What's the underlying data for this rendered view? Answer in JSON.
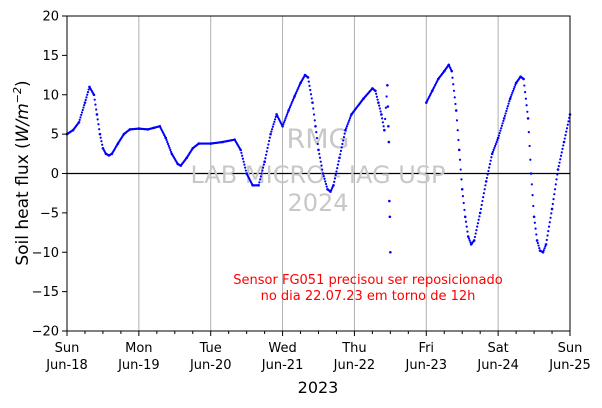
{
  "chart_data": {
    "type": "scatter",
    "ylabel_text": "Soil heat flux (",
    "ylabel_unit": "W/m",
    "ylabel_exp": "−2",
    "ylabel_close": ")",
    "xlabel": "2023",
    "ylim": [
      -20,
      20
    ],
    "xlim": [
      "2023-06-18",
      "2023-06-25"
    ],
    "yticks": [
      "−20",
      "−15",
      "−10",
      "−5",
      "0",
      "5",
      "10",
      "15",
      "20"
    ],
    "xticks": [
      {
        "day": "Sun",
        "date": "Jun-18"
      },
      {
        "day": "Mon",
        "date": "Jun-19"
      },
      {
        "day": "Tue",
        "date": "Jun-20"
      },
      {
        "day": "Wed",
        "date": "Jun-21"
      },
      {
        "day": "Thu",
        "date": "Jun-22"
      },
      {
        "day": "Fri",
        "date": "Jun-23"
      },
      {
        "day": "Sat",
        "date": "Jun-24"
      },
      {
        "day": "Sun",
        "date": "Jun-25"
      }
    ],
    "grid": "vertical",
    "zero_line": true,
    "series": [
      {
        "color": "#0000ff",
        "marker": "dot",
        "points": [
          [
            "2023-06-18 00:00",
            5.0
          ],
          [
            "2023-06-18 02:00",
            5.5
          ],
          [
            "2023-06-18 04:00",
            6.5
          ],
          [
            "2023-06-18 06:00",
            9.0
          ],
          [
            "2023-06-18 07:30",
            11.0
          ],
          [
            "2023-06-18 09:00",
            10.0
          ],
          [
            "2023-06-18 10:00",
            7.5
          ],
          [
            "2023-06-18 11:00",
            5.0
          ],
          [
            "2023-06-18 12:00",
            3.2
          ],
          [
            "2023-06-18 13:00",
            2.5
          ],
          [
            "2023-06-18 14:00",
            2.3
          ],
          [
            "2023-06-18 15:00",
            2.5
          ],
          [
            "2023-06-18 17:00",
            3.8
          ],
          [
            "2023-06-18 19:00",
            5.0
          ],
          [
            "2023-06-18 21:00",
            5.6
          ],
          [
            "2023-06-19 00:00",
            5.7
          ],
          [
            "2023-06-19 03:00",
            5.6
          ],
          [
            "2023-06-19 05:00",
            5.8
          ],
          [
            "2023-06-19 07:00",
            6.0
          ],
          [
            "2023-06-19 09:00",
            4.5
          ],
          [
            "2023-06-19 11:00",
            2.5
          ],
          [
            "2023-06-19 13:00",
            1.2
          ],
          [
            "2023-06-19 14:00",
            1.0
          ],
          [
            "2023-06-19 16:00",
            2.0
          ],
          [
            "2023-06-19 18:00",
            3.2
          ],
          [
            "2023-06-19 20:00",
            3.8
          ],
          [
            "2023-06-20 00:00",
            3.8
          ],
          [
            "2023-06-20 04:00",
            4.0
          ],
          [
            "2023-06-20 08:00",
            4.3
          ],
          [
            "2023-06-20 10:00",
            3.0
          ],
          [
            "2023-06-20 12:00",
            0.0
          ],
          [
            "2023-06-20 14:00",
            -1.5
          ],
          [
            "2023-06-20 16:00",
            -1.5
          ],
          [
            "2023-06-20 18:00",
            1.5
          ],
          [
            "2023-06-20 20:00",
            5.0
          ],
          [
            "2023-06-20 22:00",
            7.5
          ],
          [
            "2023-06-21 00:00",
            6.0
          ],
          [
            "2023-06-21 02:00",
            8.0
          ],
          [
            "2023-06-21 04:00",
            9.8
          ],
          [
            "2023-06-21 06:00",
            11.5
          ],
          [
            "2023-06-21 07:30",
            12.5
          ],
          [
            "2023-06-21 08:30",
            12.2
          ],
          [
            "2023-06-21 10:00",
            9.0
          ],
          [
            "2023-06-21 11:00",
            6.0
          ],
          [
            "2023-06-21 12:00",
            3.0
          ],
          [
            "2023-06-21 13:30",
            0.0
          ],
          [
            "2023-06-21 15:00",
            -2.0
          ],
          [
            "2023-06-21 16:00",
            -2.3
          ],
          [
            "2023-06-21 17:00",
            -1.5
          ],
          [
            "2023-06-21 19:00",
            2.0
          ],
          [
            "2023-06-21 21:00",
            5.5
          ],
          [
            "2023-06-21 23:00",
            7.5
          ],
          [
            "2023-06-22 03:00",
            9.5
          ],
          [
            "2023-06-22 06:00",
            10.8
          ],
          [
            "2023-06-22 07:00",
            10.5
          ],
          [
            "2023-06-22 08:00",
            9.0
          ],
          [
            "2023-06-22 09:00",
            7.5
          ],
          [
            "2023-06-22 10:00",
            5.5
          ],
          [
            "2023-06-22 11:00",
            11.2
          ],
          [
            "2023-06-22 11:10",
            8.5
          ],
          [
            "2023-06-22 11:20",
            6.0
          ],
          [
            "2023-06-22 11:30",
            4.0
          ],
          [
            "2023-06-22 11:40",
            -3.5
          ],
          [
            "2023-06-22 11:50",
            -5.5
          ],
          [
            "2023-06-22 12:00",
            -10.0
          ],
          [
            "2023-06-23 00:00",
            9.0
          ],
          [
            "2023-06-23 02:00",
            10.5
          ],
          [
            "2023-06-23 04:00",
            12.0
          ],
          [
            "2023-06-23 06:00",
            13.0
          ],
          [
            "2023-06-23 07:30",
            13.8
          ],
          [
            "2023-06-23 08:30",
            13.0
          ],
          [
            "2023-06-23 10:00",
            8.0
          ],
          [
            "2023-06-23 11:00",
            3.0
          ],
          [
            "2023-06-23 12:00",
            -2.0
          ],
          [
            "2023-06-23 13:00",
            -5.5
          ],
          [
            "2023-06-23 14:00",
            -8.0
          ],
          [
            "2023-06-23 15:00",
            -9.0
          ],
          [
            "2023-06-23 16:00",
            -8.5
          ],
          [
            "2023-06-23 18:00",
            -5.0
          ],
          [
            "2023-06-23 20:00",
            -1.0
          ],
          [
            "2023-06-23 22:00",
            2.5
          ],
          [
            "2023-06-24 00:00",
            4.5
          ],
          [
            "2023-06-24 02:00",
            7.0
          ],
          [
            "2023-06-24 04:00",
            9.5
          ],
          [
            "2023-06-24 06:00",
            11.5
          ],
          [
            "2023-06-24 07:30",
            12.3
          ],
          [
            "2023-06-24 08:30",
            12.0
          ],
          [
            "2023-06-24 10:00",
            7.0
          ],
          [
            "2023-06-24 11:00",
            0.0
          ],
          [
            "2023-06-24 12:00",
            -5.5
          ],
          [
            "2023-06-24 13:00",
            -8.5
          ],
          [
            "2023-06-24 14:00",
            -9.8
          ],
          [
            "2023-06-24 15:00",
            -10.0
          ],
          [
            "2023-06-24 16:00",
            -9.0
          ],
          [
            "2023-06-24 18:00",
            -4.5
          ],
          [
            "2023-06-24 20:00",
            0.5
          ],
          [
            "2023-06-24 22:00",
            4.0
          ],
          [
            "2023-06-25 00:00",
            7.5
          ]
        ]
      }
    ],
    "annotation_lines": [
      "Sensor FG051 precisou ser reposicionado",
      "no dia 22.07.23 em torno de 12h"
    ],
    "annotation_color": "#ff0000",
    "watermark_lines": [
      "RMG",
      "LAB MICRO - IAG USP",
      "2024"
    ]
  }
}
